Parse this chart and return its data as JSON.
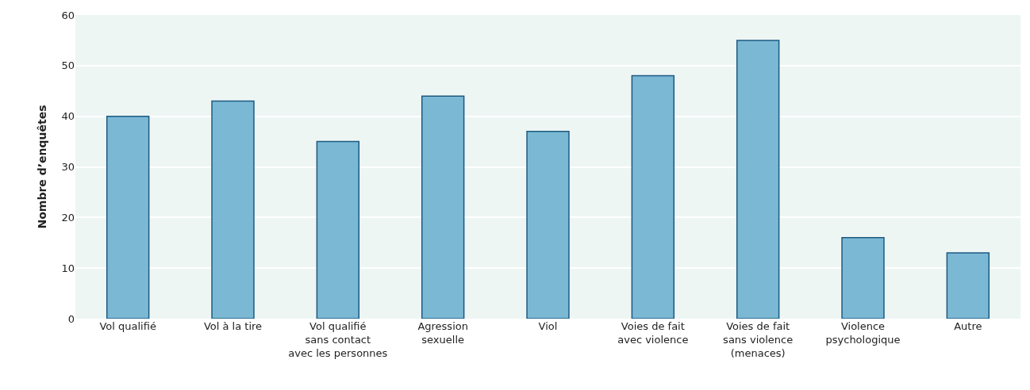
{
  "chart_data": {
    "type": "bar",
    "ylabel": "Nombre d’enquêtes",
    "categories": [
      "Vol qualifié",
      "Vol à la tire",
      "Vol qualifié\nsans contact\navec les personnes",
      "Agression\nsexuelle",
      "Viol",
      "Voies de fait\navec violence",
      "Voies de fait\nsans violence\n(menaces)",
      "Violence\npsychologique",
      "Autre"
    ],
    "values": [
      40,
      43,
      35,
      44,
      37,
      48,
      55,
      16,
      13
    ],
    "color": "#7ab8d4",
    "ylim": [
      0,
      60
    ],
    "yticks": [
      0,
      10,
      20,
      30,
      40,
      50,
      60
    ],
    "grid": "y"
  }
}
